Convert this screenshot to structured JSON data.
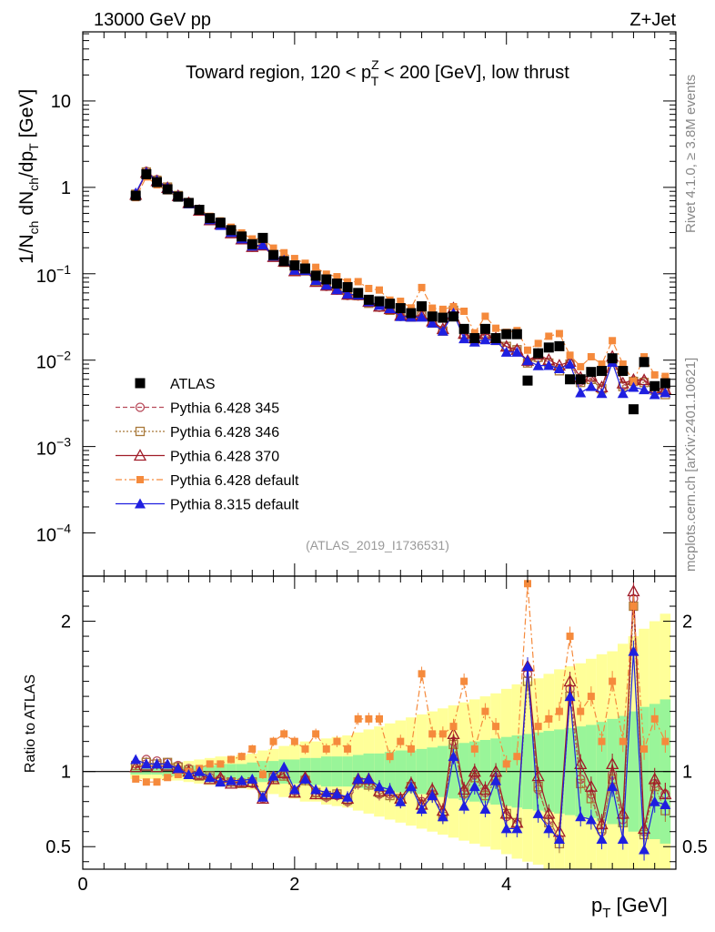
{
  "header": {
    "energy_label": "13000 GeV pp",
    "process_label": "Z+Jet",
    "side_top": "Rivet 4.1.0, ≥ 3.8M events",
    "side_bottom": "mcplots.cern.ch [arXiv:2401.10621]",
    "analysis_id": "(ATLAS_2019_I1736531)"
  },
  "colors": {
    "atlas": "#000000",
    "p345": "#b84a5a",
    "p346": "#a87838",
    "p370": "#a01c28",
    "p6def": "#f58a3c",
    "p8": "#1f1fe0",
    "band_yellow": "#ffff99",
    "band_green": "#99f599"
  },
  "chart_data": [
    {
      "type": "scatter",
      "panel": "main",
      "title_parts": {
        "pre": "Toward region, 120 < p",
        "sup": "Z",
        "sub": "T",
        "post": " < 200 [GeV], low thrust"
      },
      "ylabel": {
        "main": "1/N",
        "sub1": "ch",
        "mid": " dN",
        "sub2": "ch",
        "mid2": "/dp",
        "sub3": "T",
        "unit": " [GeV]"
      },
      "xlim": [
        0,
        5.6
      ],
      "ylim_log10": [
        -4.5,
        1.8
      ],
      "y_ticks": [
        {
          "value": 10,
          "label": "10"
        },
        {
          "value": 1,
          "label": "1"
        },
        {
          "value": 0.1,
          "label": "10",
          "exp": "−1"
        },
        {
          "value": 0.01,
          "label": "10",
          "exp": "−2"
        },
        {
          "value": 0.001,
          "label": "10",
          "exp": "−3"
        },
        {
          "value": 0.0001,
          "label": "10",
          "exp": "−4"
        }
      ],
      "x": [
        0.5,
        0.6,
        0.7,
        0.8,
        0.9,
        1.0,
        1.1,
        1.2,
        1.3,
        1.4,
        1.5,
        1.6,
        1.7,
        1.8,
        1.9,
        2.0,
        2.1,
        2.2,
        2.3,
        2.4,
        2.5,
        2.6,
        2.7,
        2.8,
        2.9,
        3.0,
        3.1,
        3.2,
        3.3,
        3.4,
        3.5,
        3.6,
        3.7,
        3.8,
        3.9,
        4.0,
        4.1,
        4.2,
        4.3,
        4.4,
        4.5,
        4.6,
        4.7,
        4.8,
        4.9,
        5.0,
        5.1,
        5.2,
        5.3,
        5.4,
        5.5
      ],
      "atlas": [
        0.8,
        1.42,
        1.15,
        0.95,
        0.78,
        0.66,
        0.55,
        0.44,
        0.39,
        0.32,
        0.27,
        0.22,
        0.26,
        0.165,
        0.14,
        0.125,
        0.115,
        0.095,
        0.086,
        0.077,
        0.07,
        0.06,
        0.05,
        0.048,
        0.045,
        0.04,
        0.035,
        0.042,
        0.032,
        0.031,
        0.032,
        0.023,
        0.018,
        0.023,
        0.018,
        0.02,
        0.02,
        0.0058,
        0.012,
        0.014,
        0.0145,
        0.006,
        0.006,
        0.0073,
        0.0075,
        0.0105,
        0.0075,
        0.0027,
        0.0095,
        0.005,
        0.0054
      ],
      "series": [
        {
          "name": "ATLAS",
          "key": "atlas",
          "marker": "square-filled",
          "style": "none",
          "legend": "ATLAS"
        },
        {
          "name": "Pythia 6.428 345",
          "key": "p345",
          "marker": "circle-open",
          "style": "dashed",
          "legend": "Pythia 6.428 345"
        },
        {
          "name": "Pythia 6.428 346",
          "key": "p346",
          "marker": "square-open",
          "style": "dotted",
          "legend": "Pythia 6.428 346"
        },
        {
          "name": "Pythia 6.428 370",
          "key": "p370",
          "marker": "triangle-open",
          "style": "solid",
          "legend": "Pythia 6.428 370"
        },
        {
          "name": "Pythia 6.428 default",
          "key": "p6def",
          "marker": "square-filled-small",
          "style": "dashdot",
          "legend": "Pythia 6.428 default"
        },
        {
          "name": "Pythia 8.315 default",
          "key": "p8",
          "marker": "triangle-filled",
          "style": "solid",
          "legend": "Pythia 8.315 default"
        }
      ]
    },
    {
      "type": "scatter",
      "panel": "ratio",
      "ylabel": "Ratio to ATLAS",
      "xlabel": "p",
      "xlabel_sub": "T",
      "xlabel_unit": " [GeV]",
      "xlim": [
        0,
        5.6
      ],
      "ylim": [
        0.35,
        2.3
      ],
      "x_ticks": [
        0,
        2,
        4
      ],
      "y_ticks": [
        0.5,
        1,
        2
      ],
      "reference": 1,
      "band_green_halfwidth": [
        0.02,
        0.02,
        0.02,
        0.03,
        0.03,
        0.03,
        0.04,
        0.04,
        0.05,
        0.05,
        0.05,
        0.06,
        0.07,
        0.07,
        0.08,
        0.08,
        0.09,
        0.09,
        0.1,
        0.1,
        0.1,
        0.11,
        0.12,
        0.12,
        0.13,
        0.14,
        0.14,
        0.15,
        0.16,
        0.17,
        0.18,
        0.19,
        0.2,
        0.21,
        0.22,
        0.23,
        0.24,
        0.25,
        0.26,
        0.27,
        0.28,
        0.29,
        0.3,
        0.31,
        0.33,
        0.35,
        0.37,
        0.4,
        0.43,
        0.45,
        0.48
      ],
      "band_yellow_halfwidth": [
        0.05,
        0.05,
        0.05,
        0.06,
        0.06,
        0.07,
        0.08,
        0.09,
        0.1,
        0.1,
        0.11,
        0.12,
        0.14,
        0.15,
        0.17,
        0.18,
        0.2,
        0.2,
        0.22,
        0.23,
        0.24,
        0.26,
        0.28,
        0.3,
        0.32,
        0.34,
        0.36,
        0.38,
        0.4,
        0.42,
        0.44,
        0.46,
        0.48,
        0.5,
        0.52,
        0.55,
        0.58,
        0.6,
        0.62,
        0.65,
        0.68,
        0.7,
        0.72,
        0.75,
        0.78,
        0.8,
        0.85,
        0.9,
        0.95,
        1.0,
        1.05
      ],
      "ratios": {
        "p345": [
          1.05,
          1.08,
          1.07,
          1.06,
          1.04,
          1.02,
          0.98,
          0.96,
          0.95,
          0.93,
          0.93,
          0.92,
          0.82,
          0.97,
          0.98,
          0.87,
          0.95,
          0.86,
          0.83,
          0.84,
          0.8,
          0.92,
          0.92,
          0.85,
          0.85,
          0.8,
          0.9,
          0.8,
          0.85,
          0.72,
          1.2,
          0.85,
          0.98,
          0.86,
          0.96,
          0.7,
          0.65,
          1.65,
          0.88,
          0.68,
          0.55,
          1.55,
          0.95,
          0.85,
          0.6,
          0.98,
          0.68,
          2.15,
          0.6,
          0.92,
          0.85
        ],
        "p346": [
          1.04,
          1.06,
          1.05,
          1.06,
          1.03,
          1.01,
          0.97,
          0.97,
          0.94,
          0.93,
          0.92,
          0.93,
          0.84,
          0.96,
          0.97,
          0.86,
          0.94,
          0.86,
          0.84,
          0.85,
          0.81,
          0.93,
          0.91,
          0.86,
          0.84,
          0.82,
          0.9,
          0.78,
          0.84,
          0.7,
          1.18,
          0.86,
          0.96,
          0.84,
          0.94,
          0.72,
          0.66,
          1.6,
          0.9,
          0.66,
          0.52,
          1.5,
          0.92,
          0.82,
          0.62,
          0.95,
          0.66,
          2.1,
          0.58,
          0.9,
          0.74
        ],
        "p370": [
          1.03,
          1.04,
          1.03,
          1.04,
          1.02,
          1.0,
          0.98,
          0.95,
          0.96,
          0.92,
          0.93,
          0.93,
          0.82,
          0.95,
          0.99,
          0.86,
          0.96,
          0.85,
          0.85,
          0.85,
          0.82,
          0.95,
          0.95,
          0.87,
          0.87,
          0.82,
          0.92,
          0.78,
          0.88,
          0.74,
          1.25,
          0.88,
          1.0,
          0.88,
          1.0,
          0.72,
          0.66,
          1.7,
          0.97,
          0.72,
          0.6,
          1.6,
          1.05,
          0.9,
          0.65,
          1.05,
          0.72,
          2.2,
          0.62,
          0.95,
          0.85
        ],
        "p6def": [
          0.95,
          0.93,
          0.93,
          0.96,
          0.98,
          1.0,
          1.02,
          1.05,
          1.05,
          1.08,
          1.1,
          1.15,
          0.98,
          1.2,
          1.25,
          1.2,
          1.15,
          1.25,
          1.15,
          1.2,
          1.15,
          1.35,
          1.35,
          1.35,
          1.1,
          1.2,
          1.15,
          1.65,
          1.25,
          1.25,
          1.3,
          1.6,
          1.15,
          1.4,
          1.3,
          1.05,
          1.1,
          2.25,
          1.3,
          1.35,
          1.4,
          1.9,
          1.4,
          1.5,
          1.2,
          1.6,
          1.2,
          2.1,
          1.15,
          1.35,
          1.2
        ],
        "p8": [
          1.08,
          1.05,
          1.05,
          1.05,
          1.02,
          0.98,
          1.0,
          0.96,
          0.93,
          0.94,
          0.94,
          0.95,
          0.83,
          0.97,
          1.03,
          0.88,
          0.95,
          0.88,
          0.86,
          0.85,
          0.83,
          0.95,
          0.95,
          0.9,
          0.88,
          0.8,
          0.9,
          0.75,
          0.84,
          0.7,
          1.1,
          0.77,
          0.9,
          0.75,
          0.94,
          0.62,
          0.62,
          1.7,
          0.72,
          0.62,
          0.55,
          1.5,
          0.7,
          0.68,
          0.55,
          0.9,
          0.55,
          1.8,
          0.48,
          0.8,
          0.78
        ]
      }
    }
  ]
}
